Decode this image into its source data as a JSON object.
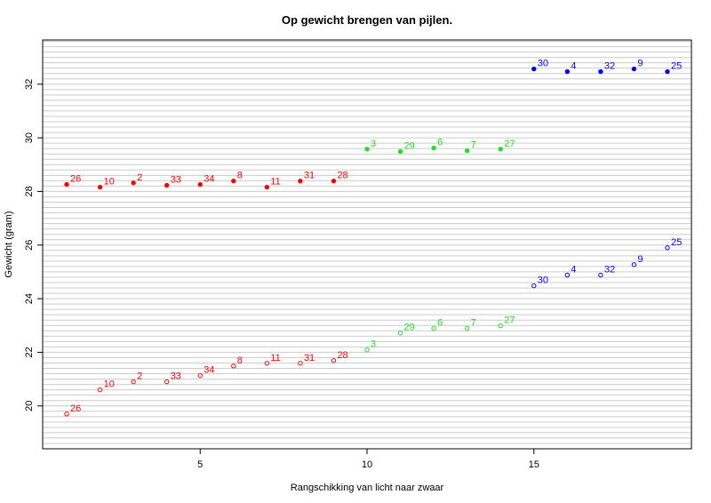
{
  "chart_data": {
    "type": "scatter",
    "title": "Op gewicht brengen van pijlen.",
    "x_label": "Rangschikking van licht naar zwaar",
    "y_label": "Gewicht (gram)",
    "xlim": [
      0.28,
      19.72
    ],
    "ylim": [
      18.4,
      33.65
    ],
    "xticks": [
      5,
      10,
      15
    ],
    "yticks": [
      20,
      22,
      24,
      26,
      28,
      30,
      32
    ],
    "grid": true,
    "ygrid": [
      18.6,
      18.8,
      19.0,
      19.2,
      19.4,
      19.6,
      19.8,
      20.0,
      20.2,
      20.4,
      20.6,
      20.8,
      21.0,
      21.2,
      21.4,
      21.6,
      21.8,
      22.0,
      22.2,
      22.4,
      22.6,
      22.8,
      23.0,
      23.2,
      23.4,
      23.6,
      23.8,
      24.0,
      24.2,
      24.4,
      24.6,
      24.8,
      25.0,
      25.2,
      25.4,
      25.6,
      25.8,
      26.0,
      26.2,
      26.4,
      26.6,
      26.8,
      27.0,
      27.2,
      27.4,
      27.6,
      27.8,
      28.0,
      28.2,
      28.4,
      28.6,
      28.8,
      29.0,
      29.2,
      29.4,
      29.6,
      29.8,
      30.0,
      30.2,
      30.4,
      30.6,
      30.8,
      31.0,
      31.2,
      31.4,
      31.6,
      31.8,
      32.0,
      32.2,
      32.4,
      32.6,
      32.8,
      33.0,
      33.2,
      33.4,
      33.6
    ],
    "series": [
      {
        "color": "#ff0000",
        "filled": true,
        "x": [
          1,
          2,
          3,
          4,
          5,
          6,
          7,
          8,
          9
        ],
        "values": [
          28.26,
          28.16,
          28.32,
          28.23,
          28.26,
          28.39,
          28.16,
          28.39,
          28.39
        ],
        "labels": [
          "26",
          "10",
          "2",
          "33",
          "34",
          "8",
          "11",
          "31",
          "28"
        ]
      },
      {
        "color": "#ff0000",
        "filled": false,
        "x": [
          1,
          2,
          3,
          4,
          5,
          6,
          7,
          8,
          9
        ],
        "values": [
          19.7,
          20.6,
          20.9,
          20.9,
          21.13,
          21.49,
          21.59,
          21.59,
          21.69
        ],
        "labels": [
          "26",
          "10",
          "2",
          "33",
          "34",
          "8",
          "11",
          "31",
          "28"
        ]
      },
      {
        "color": "#22dd22",
        "filled": true,
        "x": [
          10,
          11,
          12,
          13,
          14
        ],
        "values": [
          29.58,
          29.49,
          29.62,
          29.52,
          29.58
        ],
        "labels": [
          "3",
          "29",
          "6",
          "7",
          "27"
        ]
      },
      {
        "color": "#22dd22",
        "filled": false,
        "x": [
          10,
          11,
          12,
          13,
          14
        ],
        "values": [
          22.09,
          22.72,
          22.89,
          22.89,
          22.99
        ],
        "labels": [
          "3",
          "29",
          "6",
          "7",
          "27"
        ]
      },
      {
        "color": "#0000ff",
        "filled": true,
        "x": [
          15,
          16,
          17,
          18,
          19
        ],
        "values": [
          32.57,
          32.47,
          32.47,
          32.57,
          32.47
        ],
        "labels": [
          "30",
          "4",
          "32",
          "9",
          "25"
        ]
      },
      {
        "color": "#0000ff",
        "filled": false,
        "x": [
          15,
          16,
          17,
          18,
          19
        ],
        "values": [
          24.48,
          24.88,
          24.88,
          25.27,
          25.9
        ],
        "labels": [
          "30",
          "4",
          "32",
          "9",
          "25"
        ]
      }
    ]
  }
}
